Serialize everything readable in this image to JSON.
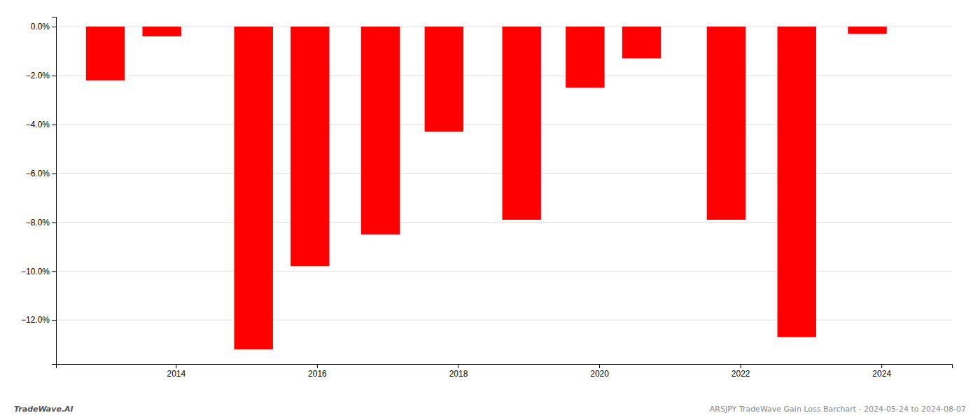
{
  "chart_data": {
    "type": "bar",
    "x": [
      2013.0,
      2013.8,
      2015.1,
      2015.9,
      2016.9,
      2017.8,
      2018.9,
      2019.8,
      2020.6,
      2021.8,
      2022.8,
      2023.8
    ],
    "values": [
      -2.2,
      -0.4,
      -13.2,
      -9.8,
      -8.5,
      -4.3,
      -7.9,
      -2.5,
      -1.3,
      -7.9,
      -12.7,
      -0.3
    ],
    "color": "#ff0000",
    "xlim": [
      2012.3,
      2025.0
    ],
    "xticks": [
      2014,
      2016,
      2018,
      2020,
      2022,
      2024
    ],
    "ylim": [
      -13.8,
      0.4
    ],
    "yticks": [
      {
        "value": 0.0,
        "label": "0.0%"
      },
      {
        "value": -2.0,
        "label": "−2.0%"
      },
      {
        "value": -4.0,
        "label": "−4.0%"
      },
      {
        "value": -6.0,
        "label": "−6.0%"
      },
      {
        "value": -8.0,
        "label": "−8.0%"
      },
      {
        "value": -10.0,
        "label": "−10.0%"
      },
      {
        "value": -12.0,
        "label": "−12.0%"
      }
    ],
    "grid": true,
    "annotations": [
      "TradeWave.AI",
      "ARSJPY TradeWave Gain Loss Barchart - 2024-05-24 to 2024-08-07"
    ]
  }
}
